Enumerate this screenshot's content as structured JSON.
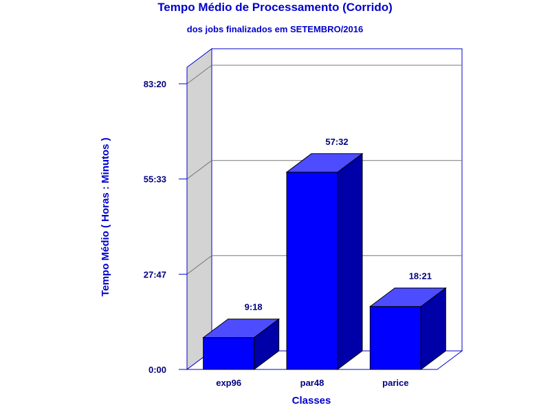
{
  "chart_data": {
    "type": "bar",
    "title": "Tempo Médio de Processamento (Corrido)",
    "subtitle": "dos jobs finalizados em SETEMBRO/2016",
    "xlabel": "Classes",
    "ylabel": "Tempo Médio ( Horas : Minutos )",
    "categories": [
      "exp96",
      "par48",
      "parice"
    ],
    "values": [
      558,
      3452,
      1101
    ],
    "value_labels": [
      "9:18",
      "57:32",
      "18:21"
    ],
    "ylim": [
      0,
      5000
    ],
    "yticks": [
      0,
      1667,
      3333,
      5000
    ],
    "ytick_labels": [
      "0:00",
      "27:47",
      "55:33",
      "83:20"
    ],
    "grid": true,
    "style": "3d",
    "colors": {
      "bar_front": "#0000ff",
      "bar_top": "#4d4dff",
      "bar_side": "#0000a8",
      "wall": "#d3d3d3",
      "axis": "#0000cc"
    }
  }
}
